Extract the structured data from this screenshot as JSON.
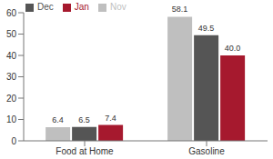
{
  "chart_data": {
    "type": "bar",
    "categories": [
      "Food at Home",
      "Gasoline"
    ],
    "series": [
      {
        "name": "Nov",
        "color": "#bfbfbf",
        "values": [
          6.4,
          58.1
        ],
        "value_labels": [
          "6.4",
          "58.1"
        ]
      },
      {
        "name": "Dec",
        "color": "#555555",
        "values": [
          6.5,
          49.5
        ],
        "value_labels": [
          "6.5",
          "49.5"
        ]
      },
      {
        "name": "Jan",
        "color": "#a6192e",
        "values": [
          7.4,
          40
        ],
        "value_labels": [
          "7.4",
          "40.0"
        ]
      }
    ],
    "ylim": [
      0,
      60
    ],
    "yticks": [
      0,
      10,
      20,
      30,
      40,
      50,
      60
    ],
    "grid": false,
    "legend": "top left",
    "data_labels": true
  }
}
